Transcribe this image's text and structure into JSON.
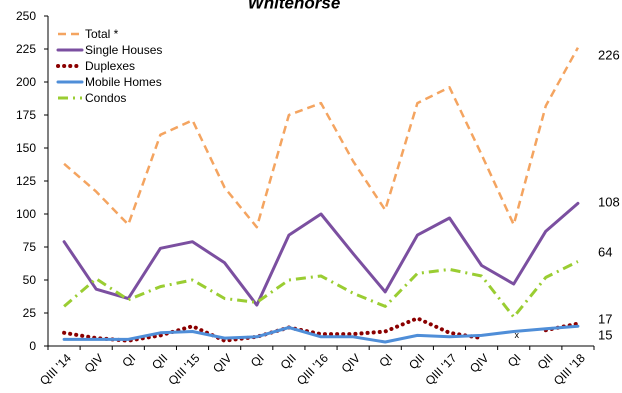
{
  "chart_data": {
    "type": "line",
    "title": "Whitehorse",
    "categories": [
      "QIII '14",
      "QIV",
      "QI",
      "QII",
      "QIII '15",
      "QIV",
      "QI",
      "QII",
      "QIII '16",
      "QIV",
      "QI",
      "QII",
      "QIII '17",
      "QIV",
      "QI",
      "QII",
      "QIII '18"
    ],
    "ylim": [
      0,
      250
    ],
    "yticks": [
      0,
      25,
      50,
      75,
      100,
      125,
      150,
      175,
      200,
      225,
      250
    ],
    "series": [
      {
        "name": "Total *",
        "color": "#F4A460",
        "style": "dashed",
        "values": [
          138,
          117,
          92,
          160,
          171,
          120,
          90,
          175,
          184,
          140,
          103,
          184,
          196,
          145,
          92,
          182,
          226
        ]
      },
      {
        "name": "Single Houses",
        "color": "#7B4FA0",
        "style": "solid",
        "values": [
          79,
          43,
          36,
          74,
          79,
          63,
          31,
          84,
          100,
          70,
          41,
          84,
          97,
          61,
          47,
          87,
          108
        ]
      },
      {
        "name": "Duplexes",
        "color": "#8B0000",
        "style": "dotted",
        "values": [
          10,
          6,
          4,
          8,
          15,
          4,
          7,
          14,
          9,
          9,
          11,
          21,
          10,
          6,
          null,
          12,
          17
        ]
      },
      {
        "name": "Mobile Homes",
        "color": "#4F8ED8",
        "style": "solid",
        "values": [
          5,
          5,
          5,
          10,
          11,
          6,
          7,
          14,
          7,
          7,
          3,
          8,
          7,
          8,
          11,
          13,
          15
        ]
      },
      {
        "name": "Condos",
        "color": "#9ACD32",
        "style": "dashdot",
        "values": [
          30,
          51,
          35,
          45,
          50,
          36,
          33,
          50,
          53,
          40,
          30,
          55,
          58,
          53,
          22,
          52,
          64
        ]
      }
    ],
    "end_labels": [
      "226",
      "108",
      "64",
      "17",
      "15"
    ],
    "annotations": [
      {
        "text": "x",
        "category_index": 14,
        "value": 12
      }
    ],
    "legend_position": "top-left",
    "grid": false
  }
}
